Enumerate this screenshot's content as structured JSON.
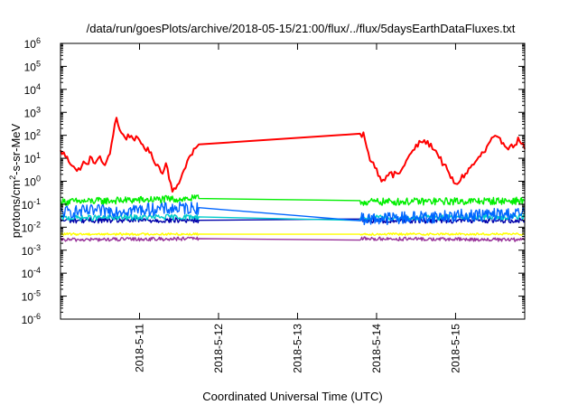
{
  "chart_data": {
    "type": "line",
    "title": "/data/run/goesPlots/archive/2018-05-15/21:00/flux/../flux/5daysEarthDataFluxes.txt",
    "xlabel": "Coordinated Universal Time (UTC)",
    "ylabel": {
      "base": "protons/cm",
      "sup": "2",
      "rest": "-s-sr-MeV"
    },
    "yscale": "log",
    "ylim_exponents": [
      -6,
      6
    ],
    "y_ticks": [
      {
        "base": "10",
        "exp": "-6",
        "value": -6
      },
      {
        "base": "10",
        "exp": "-5",
        "value": -5
      },
      {
        "base": "10",
        "exp": "-4",
        "value": -4
      },
      {
        "base": "10",
        "exp": "-3",
        "value": -3
      },
      {
        "base": "10",
        "exp": "-2",
        "value": -2
      },
      {
        "base": "10",
        "exp": "-1",
        "value": -1
      },
      {
        "base": "10",
        "exp": "0",
        "value": 0
      },
      {
        "base": "10",
        "exp": "1",
        "value": 1
      },
      {
        "base": "10",
        "exp": "2",
        "value": 2
      },
      {
        "base": "10",
        "exp": "3",
        "value": 3
      },
      {
        "base": "10",
        "exp": "4",
        "value": 4
      },
      {
        "base": "10",
        "exp": "5",
        "value": 5
      },
      {
        "base": "10",
        "exp": "6",
        "value": 6
      }
    ],
    "xlim": [
      "2018-05-10 00:00",
      "2018-05-15 21:00"
    ],
    "x_ticks": [
      {
        "label": "2018-5-11",
        "value": "2018-05-11"
      },
      {
        "label": "2018-5-12",
        "value": "2018-05-12"
      },
      {
        "label": "2018-5-13",
        "value": "2018-05-13"
      },
      {
        "label": "2018-5-14",
        "value": "2018-05-14"
      },
      {
        "label": "2018-5-15",
        "value": "2018-05-15"
      }
    ],
    "grid": false,
    "legend": "none",
    "data_gap": [
      "2018-05-11 18:00",
      "2018-05-13 19:00"
    ],
    "series": [
      {
        "color": "#ff0000",
        "points": [
          [
            "2018-05-10 00:00",
            1.3
          ],
          [
            "2018-05-10 01:00",
            1.2
          ],
          [
            "2018-05-10 02:00",
            1.0
          ],
          [
            "2018-05-10 03:00",
            0.8
          ],
          [
            "2018-05-10 04:00",
            0.7
          ],
          [
            "2018-05-10 05:00",
            0.4
          ],
          [
            "2018-05-10 06:00",
            0.6
          ],
          [
            "2018-05-10 07:00",
            0.8
          ],
          [
            "2018-05-10 08:00",
            0.7
          ],
          [
            "2018-05-10 09:00",
            1.0
          ],
          [
            "2018-05-10 10:00",
            0.85
          ],
          [
            "2018-05-10 11:00",
            0.9
          ],
          [
            "2018-05-10 12:00",
            1.0
          ],
          [
            "2018-05-10 13:00",
            0.75
          ],
          [
            "2018-05-10 14:00",
            0.8
          ],
          [
            "2018-05-10 15:00",
            1.2
          ],
          [
            "2018-05-10 16:00",
            2.1
          ],
          [
            "2018-05-10 17:00",
            2.8
          ],
          [
            "2018-05-10 18:00",
            2.2
          ],
          [
            "2018-05-10 19:00",
            2.0
          ],
          [
            "2018-05-10 20:00",
            1.9
          ],
          [
            "2018-05-10 21:00",
            2.0
          ],
          [
            "2018-05-10 22:00",
            1.9
          ],
          [
            "2018-05-10 23:00",
            1.85
          ],
          [
            "2018-05-11 00:00",
            1.7
          ],
          [
            "2018-05-11 01:00",
            1.6
          ],
          [
            "2018-05-11 02:00",
            1.4
          ],
          [
            "2018-05-11 03:00",
            1.3
          ],
          [
            "2018-05-11 04:00",
            1.0
          ],
          [
            "2018-05-11 05:00",
            0.8
          ],
          [
            "2018-05-11 06:00",
            0.6
          ],
          [
            "2018-05-11 07:00",
            0.3
          ],
          [
            "2018-05-11 08:00",
            0.9
          ],
          [
            "2018-05-11 09:00",
            0.2
          ],
          [
            "2018-05-11 10:00",
            -0.5
          ],
          [
            "2018-05-11 11:00",
            -0.3
          ],
          [
            "2018-05-11 12:00",
            0.0
          ],
          [
            "2018-05-11 13:00",
            0.3
          ],
          [
            "2018-05-11 14:00",
            0.7
          ],
          [
            "2018-05-11 15:00",
            1.0
          ],
          [
            "2018-05-11 16:00",
            1.2
          ],
          [
            "2018-05-11 17:00",
            1.4
          ],
          [
            "2018-05-11 18:00",
            1.6
          ],
          [
            "2018-05-13 19:00",
            1.95
          ],
          [
            "2018-05-13 20:00",
            2.1
          ],
          [
            "2018-05-13 21:00",
            1.4
          ],
          [
            "2018-05-13 22:00",
            1.0
          ],
          [
            "2018-05-13 23:00",
            0.8
          ],
          [
            "2018-05-14 00:00",
            0.5
          ],
          [
            "2018-05-14 01:00",
            0.2
          ],
          [
            "2018-05-14 02:00",
            0.0
          ],
          [
            "2018-05-14 03:00",
            0.3
          ],
          [
            "2018-05-14 04:00",
            0.4
          ],
          [
            "2018-05-14 05:00",
            0.2
          ],
          [
            "2018-05-14 06:00",
            0.4
          ],
          [
            "2018-05-14 07:00",
            0.3
          ],
          [
            "2018-05-14 08:00",
            0.6
          ],
          [
            "2018-05-14 09:00",
            0.9
          ],
          [
            "2018-05-14 10:00",
            1.1
          ],
          [
            "2018-05-14 11:00",
            1.3
          ],
          [
            "2018-05-14 12:00",
            1.5
          ],
          [
            "2018-05-14 13:00",
            1.65
          ],
          [
            "2018-05-14 14:00",
            1.75
          ],
          [
            "2018-05-14 15:00",
            1.7
          ],
          [
            "2018-05-14 16:00",
            1.6
          ],
          [
            "2018-05-14 17:00",
            1.5
          ],
          [
            "2018-05-14 18:00",
            1.3
          ],
          [
            "2018-05-14 19:00",
            1.1
          ],
          [
            "2018-05-14 20:00",
            0.8
          ],
          [
            "2018-05-14 21:00",
            0.6
          ],
          [
            "2018-05-14 22:00",
            0.3
          ],
          [
            "2018-05-14 23:00",
            0.1
          ],
          [
            "2018-05-15 00:00",
            -0.2
          ],
          [
            "2018-05-15 01:00",
            0.0
          ],
          [
            "2018-05-15 02:00",
            0.2
          ],
          [
            "2018-05-15 03:00",
            0.3
          ],
          [
            "2018-05-15 04:00",
            0.5
          ],
          [
            "2018-05-15 05:00",
            0.7
          ],
          [
            "2018-05-15 06:00",
            0.8
          ],
          [
            "2018-05-15 07:00",
            1.0
          ],
          [
            "2018-05-15 08:00",
            1.2
          ],
          [
            "2018-05-15 09:00",
            1.3
          ],
          [
            "2018-05-15 10:00",
            1.6
          ],
          [
            "2018-05-15 11:00",
            1.8
          ],
          [
            "2018-05-15 12:00",
            1.9
          ],
          [
            "2018-05-15 13:00",
            1.8
          ],
          [
            "2018-05-15 14:00",
            1.75
          ],
          [
            "2018-05-15 15:00",
            1.6
          ],
          [
            "2018-05-15 16:00",
            1.5
          ],
          [
            "2018-05-15 17:00",
            1.5
          ],
          [
            "2018-05-15 18:00",
            1.6
          ],
          [
            "2018-05-15 19:00",
            1.8
          ],
          [
            "2018-05-15 20:00",
            1.7
          ],
          [
            "2018-05-15 21:00",
            1.4
          ]
        ]
      },
      {
        "color": "#00ee00",
        "points": [
          [
            "2018-05-10 00:00",
            -0.9
          ],
          [
            "2018-05-11 18:00",
            -0.75
          ],
          [
            "2018-05-13 19:00",
            -0.9
          ],
          [
            "2018-05-15 21:00",
            -0.85
          ]
        ]
      },
      {
        "color": "#0066ff",
        "points": [
          [
            "2018-05-10 00:00",
            -1.35
          ],
          [
            "2018-05-11 18:00",
            -1.15
          ],
          [
            "2018-05-13 19:00",
            -1.65
          ],
          [
            "2018-05-15 21:00",
            -1.4
          ]
        ]
      },
      {
        "color": "#00cccc",
        "points": [
          [
            "2018-05-10 00:00",
            -1.6
          ],
          [
            "2018-05-11 18:00",
            -1.55
          ],
          [
            "2018-05-13 19:00",
            -1.6
          ],
          [
            "2018-05-15 21:00",
            -1.55
          ]
        ]
      },
      {
        "color": "#0000aa",
        "points": [
          [
            "2018-05-10 00:00",
            -1.7
          ],
          [
            "2018-05-11 18:00",
            -1.7
          ],
          [
            "2018-05-13 19:00",
            -1.7
          ],
          [
            "2018-05-15 21:00",
            -1.7
          ]
        ]
      },
      {
        "color": "#ffff00",
        "points": [
          [
            "2018-05-10 00:00",
            -2.3
          ],
          [
            "2018-05-11 18:00",
            -2.3
          ],
          [
            "2018-05-13 19:00",
            -2.3
          ],
          [
            "2018-05-15 21:00",
            -2.3
          ]
        ]
      },
      {
        "color": "#993399",
        "points": [
          [
            "2018-05-10 00:00",
            -2.55
          ],
          [
            "2018-05-11 18:00",
            -2.5
          ],
          [
            "2018-05-13 19:00",
            -2.5
          ],
          [
            "2018-05-15 21:00",
            -2.55
          ]
        ]
      }
    ]
  }
}
